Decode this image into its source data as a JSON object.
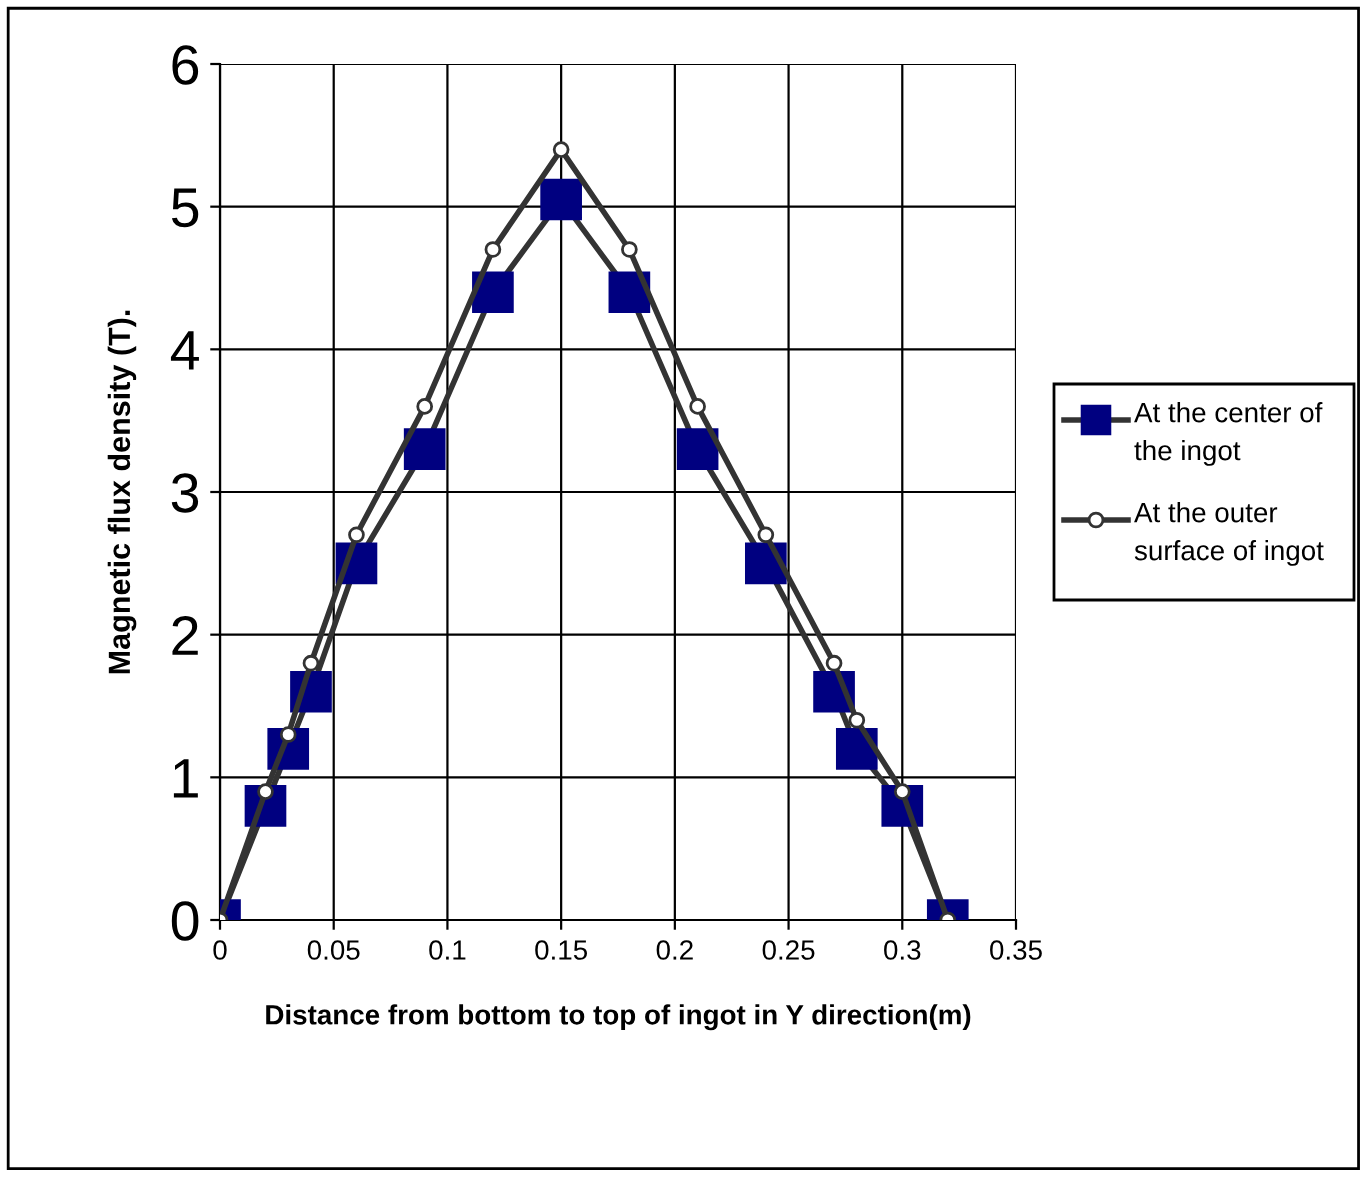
{
  "chart_data": {
    "type": "line",
    "xlabel": "Distance from bottom to top of ingot in Y direction(m)",
    "ylabel": "Magnetic flux density (T).",
    "x": [
      0,
      0.02,
      0.03,
      0.04,
      0.06,
      0.09,
      0.12,
      0.15,
      0.18,
      0.21,
      0.24,
      0.27,
      0.28,
      0.3,
      0.32
    ],
    "series": [
      {
        "name": "At the center of the ingot",
        "color": "#000080",
        "marker": "square",
        "values": [
          0,
          0.8,
          1.2,
          1.6,
          2.5,
          3.3,
          4.4,
          5.05,
          4.4,
          3.3,
          2.5,
          1.6,
          1.2,
          0.8,
          0
        ]
      },
      {
        "name": "At the outer surface of ingot",
        "color": "#333333",
        "marker": "circle",
        "values": [
          0,
          0.9,
          1.3,
          1.8,
          2.7,
          3.6,
          4.7,
          5.4,
          4.7,
          3.6,
          2.7,
          1.8,
          1.4,
          0.9,
          0
        ]
      }
    ],
    "xlim": [
      0,
      0.35
    ],
    "xticks": [
      0,
      0.05,
      0.1,
      0.15,
      0.2,
      0.25,
      0.3,
      0.35
    ],
    "ylim": [
      0,
      6
    ],
    "yticks": [
      0,
      1,
      2,
      3,
      4,
      5,
      6
    ],
    "grid": true,
    "legend": "right",
    "line_style": "solid"
  }
}
